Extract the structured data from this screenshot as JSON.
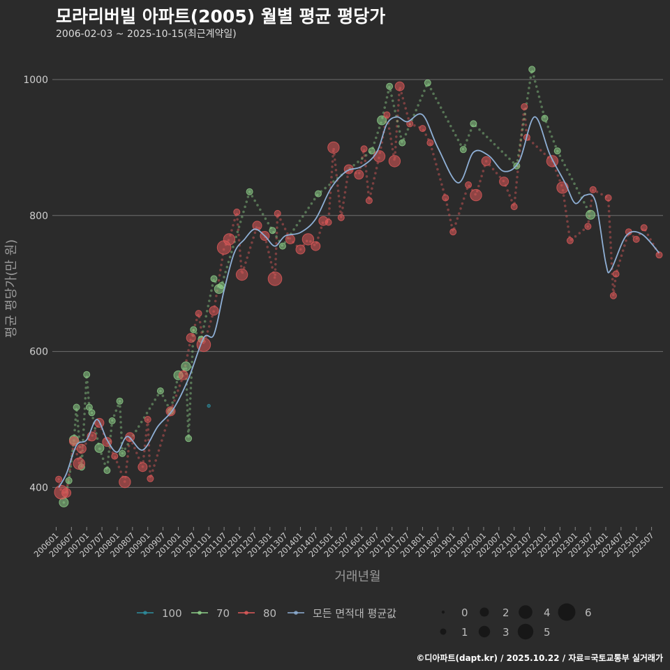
{
  "title": "모라리버빌 아파트(2005) 월별 평균 평당가",
  "subtitle": "2006-02-03 ~ 2025-10-15(최근계약일)",
  "caption": "©디아파트(dapt.kr) / 2025.10.22 / 자료=국토교통부 실거래가",
  "chart_data": {
    "type": "scatter",
    "xlabel": "거래년월",
    "ylabel": "평균 평당가(만 원)",
    "ylim": [
      345,
      1040
    ],
    "y_ticks": [
      400,
      600,
      800,
      1000
    ],
    "x_range": [
      "2006-01",
      "2025-11"
    ],
    "x_ticks": [
      "200601",
      "200607",
      "200701",
      "200707",
      "200801",
      "200807",
      "200901",
      "200907",
      "201001",
      "201007",
      "201101",
      "201107",
      "201201",
      "201207",
      "201301",
      "201307",
      "201401",
      "201407",
      "201501",
      "201507",
      "201601",
      "201607",
      "201701",
      "201707",
      "201801",
      "201807",
      "201901",
      "201907",
      "202001",
      "202007",
      "202101",
      "202107",
      "202201",
      "202207",
      "202301",
      "202307",
      "202401",
      "202407",
      "202501",
      "202507"
    ],
    "series": [
      {
        "name": "100",
        "color": "#2e8fa0",
        "line": false,
        "points": [
          [
            "2011-01",
            520,
            0
          ]
        ]
      },
      {
        "name": "70",
        "color": "#8fd18a",
        "line": true,
        "points": [
          [
            "2006-04",
            378,
            2
          ],
          [
            "2006-06",
            410,
            1
          ],
          [
            "2006-08",
            470,
            2
          ],
          [
            "2006-09",
            518,
            1
          ],
          [
            "2006-11",
            430,
            1
          ],
          [
            "2007-01",
            566,
            1
          ],
          [
            "2007-02",
            518,
            1
          ],
          [
            "2007-03",
            510,
            1
          ],
          [
            "2007-06",
            458,
            2
          ],
          [
            "2007-09",
            425,
            1
          ],
          [
            "2007-11",
            498,
            1
          ],
          [
            "2008-02",
            527,
            1
          ],
          [
            "2008-03",
            450,
            1
          ],
          [
            "2009-06",
            542,
            1
          ],
          [
            "2009-10",
            512,
            1
          ],
          [
            "2010-01",
            565,
            2
          ],
          [
            "2010-04",
            578,
            2
          ],
          [
            "2010-05",
            472,
            1
          ],
          [
            "2010-07",
            632,
            1
          ],
          [
            "2010-10",
            618,
            1
          ],
          [
            "2011-03",
            707,
            1
          ],
          [
            "2011-05",
            692,
            2
          ],
          [
            "2011-06",
            697,
            1
          ],
          [
            "2012-05",
            835,
            1
          ],
          [
            "2013-02",
            778,
            1
          ],
          [
            "2013-06",
            755,
            1
          ],
          [
            "2014-08",
            832,
            1
          ],
          [
            "2016-05",
            895,
            1
          ],
          [
            "2016-09",
            940,
            2
          ],
          [
            "2016-12",
            990,
            1
          ],
          [
            "2017-05",
            907,
            1
          ],
          [
            "2018-03",
            995,
            1
          ],
          [
            "2019-05",
            897,
            1
          ],
          [
            "2019-09",
            935,
            1
          ],
          [
            "2021-02",
            873,
            1
          ],
          [
            "2021-08",
            1015,
            1
          ],
          [
            "2022-01",
            943,
            1
          ],
          [
            "2022-06",
            895,
            1
          ],
          [
            "2023-07",
            801,
            2
          ]
        ]
      },
      {
        "name": "80",
        "color": "#e05a5a",
        "line": true,
        "points": [
          [
            "2006-02",
            412,
            1
          ],
          [
            "2006-03",
            393,
            4
          ],
          [
            "2006-05",
            392,
            2
          ],
          [
            "2006-08",
            468,
            2
          ],
          [
            "2006-10",
            435,
            3
          ],
          [
            "2006-11",
            457,
            2
          ],
          [
            "2007-03",
            475,
            2
          ],
          [
            "2007-06",
            495,
            2
          ],
          [
            "2007-09",
            467,
            2
          ],
          [
            "2007-12",
            446,
            1
          ],
          [
            "2008-04",
            408,
            3
          ],
          [
            "2008-06",
            474,
            2
          ],
          [
            "2008-11",
            430,
            2
          ],
          [
            "2009-02",
            413,
            1
          ],
          [
            "2009-01",
            500,
            1
          ],
          [
            "2009-10",
            512,
            2
          ],
          [
            "2010-03",
            565,
            2
          ],
          [
            "2010-06",
            620,
            2
          ],
          [
            "2010-09",
            656,
            1
          ],
          [
            "2010-11",
            610,
            4
          ],
          [
            "2011-03",
            660,
            2
          ],
          [
            "2011-07",
            753,
            4
          ],
          [
            "2011-09",
            765,
            3
          ],
          [
            "2011-12",
            805,
            1
          ],
          [
            "2012-02",
            713,
            3
          ],
          [
            "2012-08",
            785,
            2
          ],
          [
            "2012-11",
            770,
            2
          ],
          [
            "2013-03",
            707,
            4
          ],
          [
            "2013-04",
            803,
            1
          ],
          [
            "2013-09",
            765,
            2
          ],
          [
            "2014-01",
            750,
            2
          ],
          [
            "2014-04",
            765,
            3
          ],
          [
            "2014-07",
            755,
            2
          ],
          [
            "2014-10",
            792,
            2
          ],
          [
            "2014-12",
            790,
            1
          ],
          [
            "2015-02",
            900,
            3
          ],
          [
            "2015-05",
            797,
            1
          ],
          [
            "2015-08",
            868,
            2
          ],
          [
            "2015-12",
            860,
            2
          ],
          [
            "2016-02",
            898,
            1
          ],
          [
            "2016-04",
            822,
            1
          ],
          [
            "2016-08",
            887,
            3
          ],
          [
            "2016-11",
            948,
            1
          ],
          [
            "2017-02",
            880,
            3
          ],
          [
            "2017-04",
            990,
            2
          ],
          [
            "2017-08",
            935,
            1
          ],
          [
            "2018-01",
            928,
            1
          ],
          [
            "2018-04",
            907,
            1
          ],
          [
            "2018-10",
            826,
            1
          ],
          [
            "2019-01",
            776,
            1
          ],
          [
            "2019-07",
            845,
            1
          ],
          [
            "2019-10",
            830,
            3
          ],
          [
            "2020-02",
            880,
            2
          ],
          [
            "2020-09",
            850,
            2
          ],
          [
            "2021-01",
            813,
            1
          ],
          [
            "2021-05",
            960,
            1
          ],
          [
            "2021-06",
            915,
            1
          ],
          [
            "2022-04",
            880,
            3
          ],
          [
            "2022-08",
            841,
            3
          ],
          [
            "2022-11",
            763,
            1
          ],
          [
            "2023-06",
            784,
            1
          ],
          [
            "2023-08",
            838,
            1
          ],
          [
            "2024-02",
            826,
            1
          ],
          [
            "2024-04",
            682,
            1
          ],
          [
            "2024-05",
            714,
            1
          ],
          [
            "2024-10",
            776,
            1
          ],
          [
            "2025-01",
            765,
            1
          ],
          [
            "2025-04",
            782,
            1
          ],
          [
            "2025-10",
            742,
            1
          ]
        ]
      },
      {
        "name": "모든 면적대 평균값",
        "color": "#8fb0d6",
        "line": true,
        "points": [
          [
            "2006-02",
            400
          ],
          [
            "2006-05",
            420
          ],
          [
            "2006-09",
            462
          ],
          [
            "2007-01",
            470
          ],
          [
            "2007-05",
            500
          ],
          [
            "2007-09",
            470
          ],
          [
            "2008-01",
            452
          ],
          [
            "2008-05",
            475
          ],
          [
            "2008-11",
            455
          ],
          [
            "2009-05",
            490
          ],
          [
            "2009-11",
            515
          ],
          [
            "2010-05",
            560
          ],
          [
            "2010-11",
            620
          ],
          [
            "2011-03",
            625
          ],
          [
            "2011-07",
            690
          ],
          [
            "2011-11",
            745
          ],
          [
            "2012-03",
            765
          ],
          [
            "2012-07",
            780
          ],
          [
            "2012-11",
            770
          ],
          [
            "2013-03",
            755
          ],
          [
            "2013-07",
            770
          ],
          [
            "2014-01",
            775
          ],
          [
            "2014-07",
            795
          ],
          [
            "2015-01",
            840
          ],
          [
            "2015-07",
            865
          ],
          [
            "2016-01",
            872
          ],
          [
            "2016-07",
            893
          ],
          [
            "2016-11",
            935
          ],
          [
            "2017-03",
            945
          ],
          [
            "2017-07",
            938
          ],
          [
            "2018-01",
            948
          ],
          [
            "2018-07",
            900
          ],
          [
            "2019-03",
            848
          ],
          [
            "2019-09",
            893
          ],
          [
            "2020-03",
            888
          ],
          [
            "2020-09",
            865
          ],
          [
            "2021-03",
            880
          ],
          [
            "2021-09",
            945
          ],
          [
            "2022-03",
            890
          ],
          [
            "2022-09",
            848
          ],
          [
            "2023-01",
            818
          ],
          [
            "2023-05",
            830
          ],
          [
            "2023-09",
            820
          ],
          [
            "2024-01",
            730
          ],
          [
            "2024-03",
            720
          ],
          [
            "2024-09",
            770
          ],
          [
            "2025-03",
            773
          ],
          [
            "2025-10",
            745
          ]
        ]
      }
    ],
    "size_legend": [
      "0",
      "1",
      "2",
      "3",
      "4",
      "5",
      "6"
    ],
    "legend_placement": "bottom"
  }
}
